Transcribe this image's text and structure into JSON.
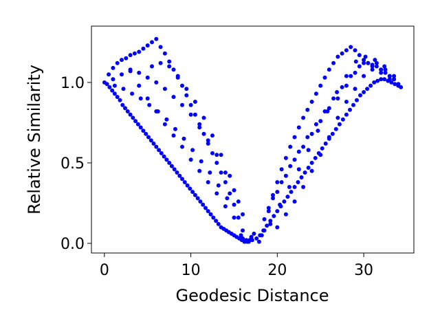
{
  "chart_data": {
    "type": "scatter",
    "title": "",
    "xlabel": "Geodesic Distance",
    "ylabel": "Relative Similarity",
    "xlim": [
      -1.5,
      35.8
    ],
    "ylim": [
      -0.06,
      1.35
    ],
    "x_ticks": [
      0,
      10,
      20,
      30
    ],
    "x_tick_labels": [
      "0",
      "10",
      "20",
      "30"
    ],
    "y_ticks": [
      0.0,
      0.5,
      1.0
    ],
    "y_tick_labels": [
      "0.0",
      "0.5",
      "1.0"
    ],
    "grid": false,
    "legend": "none",
    "marker_color": "#0000ff",
    "series": [
      {
        "x": [
          0.0,
          0.3,
          0.6,
          0.9,
          1.2,
          1.5,
          1.8,
          2.1,
          2.4,
          2.7,
          3.0,
          3.3,
          3.6,
          3.9,
          4.2,
          4.5,
          4.8,
          5.1,
          5.4,
          5.7,
          6.0,
          6.3,
          6.6,
          6.9,
          7.2,
          7.5,
          7.8,
          8.1,
          8.4,
          8.7,
          9.0,
          9.3,
          9.6,
          9.9,
          10.2,
          10.5,
          10.8,
          11.1,
          11.4,
          11.7,
          12.0,
          12.3,
          12.6,
          12.9,
          13.2,
          13.5,
          13.8,
          14.1,
          14.4,
          14.7,
          15.0,
          15.3,
          15.6,
          15.9,
          16.2,
          16.5,
          16.8,
          17.1,
          0.5,
          1.0,
          1.5,
          2.0,
          2.5,
          3.0,
          3.5,
          4.0,
          4.5,
          5.0,
          5.5,
          6.0,
          6.5,
          7.0,
          7.5,
          8.0,
          8.5,
          9.0,
          9.5,
          10.0,
          10.5,
          11.0,
          11.5,
          12.0,
          12.5,
          13.0,
          13.5,
          14.0,
          14.5,
          15.0,
          15.5,
          16.0,
          1.0,
          2.0,
          3.0,
          4.0,
          5.0,
          6.0,
          7.0,
          8.0,
          9.0,
          10.0,
          11.0,
          12.0,
          13.0,
          14.0,
          15.0,
          16.0,
          5.5,
          6.5,
          7.5,
          8.5,
          9.5,
          10.5,
          11.5,
          12.5,
          13.5,
          14.5,
          15.5,
          1.2,
          2.2,
          3.2,
          4.2,
          5.2,
          6.2,
          7.2,
          8.2,
          9.2,
          10.2,
          11.2,
          12.2,
          13.2,
          14.2,
          3.0,
          4.0,
          5.0,
          6.0,
          7.0,
          8.0,
          9.0,
          10.0,
          11.0,
          12.0,
          13.0,
          14.0,
          15.0,
          15.8,
          16.0,
          16.4,
          16.7,
          17.0,
          17.3,
          17.6,
          17.9,
          18.2,
          18.5,
          18.0,
          18.4,
          18.8,
          19.2,
          19.6,
          20.0,
          20.4,
          20.8,
          21.2,
          21.6,
          22.0,
          22.4,
          22.8,
          23.2,
          23.6,
          24.0,
          24.4,
          24.8,
          25.2,
          25.6,
          26.0,
          26.4,
          26.8,
          27.2,
          27.6,
          28.0,
          28.4,
          28.8,
          29.2,
          29.6,
          30.0,
          30.4,
          30.8,
          31.2,
          31.6,
          32.0,
          32.4,
          32.8,
          33.2,
          33.6,
          34.0,
          34.3,
          18.5,
          19.0,
          19.5,
          20.0,
          20.5,
          21.0,
          21.5,
          22.0,
          22.5,
          23.0,
          23.5,
          24.0,
          24.5,
          25.0,
          25.5,
          26.0,
          26.5,
          27.0,
          27.5,
          28.0,
          28.5,
          29.0,
          29.5,
          30.0,
          30.5,
          31.0,
          31.5,
          32.0,
          32.5,
          33.0,
          33.5,
          34.0,
          19.0,
          20.0,
          21.0,
          22.0,
          23.0,
          24.0,
          25.0,
          26.0,
          27.0,
          28.0,
          29.0,
          30.0,
          31.0,
          32.0,
          33.0,
          34.0,
          19.5,
          20.5,
          21.5,
          22.5,
          23.5,
          24.5,
          25.5,
          26.5,
          27.5,
          28.5,
          29.5,
          30.5,
          31.5,
          32.5,
          33.5,
          20.0,
          21.0,
          22.0,
          23.0,
          24.0,
          25.0,
          26.0,
          27.0,
          28.0,
          29.0,
          30.0,
          31.0,
          32.0,
          33.0,
          19.2,
          20.3,
          21.4,
          22.5,
          23.6,
          24.7,
          25.8,
          26.9,
          28.0,
          29.1,
          30.2,
          31.3,
          32.4,
          33.5
        ],
        "y": [
          1.0,
          0.99,
          0.97,
          0.95,
          0.93,
          0.91,
          0.89,
          0.86,
          0.84,
          0.82,
          0.8,
          0.78,
          0.76,
          0.74,
          0.72,
          0.7,
          0.68,
          0.66,
          0.64,
          0.62,
          0.6,
          0.58,
          0.56,
          0.54,
          0.52,
          0.5,
          0.48,
          0.46,
          0.44,
          0.42,
          0.4,
          0.38,
          0.36,
          0.34,
          0.32,
          0.3,
          0.28,
          0.26,
          0.24,
          0.22,
          0.2,
          0.18,
          0.16,
          0.14,
          0.12,
          0.1,
          0.09,
          0.08,
          0.07,
          0.06,
          0.05,
          0.04,
          0.03,
          0.02,
          0.01,
          0.01,
          0.02,
          0.02,
          1.05,
          1.09,
          1.12,
          1.14,
          1.15,
          1.17,
          1.18,
          1.19,
          1.21,
          1.23,
          1.25,
          1.27,
          1.22,
          1.18,
          1.13,
          1.08,
          1.03,
          0.98,
          0.92,
          0.86,
          0.8,
          0.74,
          0.68,
          0.62,
          0.56,
          0.5,
          0.44,
          0.38,
          0.31,
          0.24,
          0.16,
          0.08,
          1.02,
          1.05,
          1.07,
          1.06,
          1.03,
          1.0,
          0.96,
          0.91,
          0.86,
          0.8,
          0.72,
          0.64,
          0.55,
          0.44,
          0.33,
          0.18,
          1.1,
          1.12,
          1.1,
          1.04,
          0.96,
          0.88,
          0.78,
          0.67,
          0.55,
          0.42,
          0.26,
          0.98,
          0.96,
          0.93,
          0.9,
          0.86,
          0.82,
          0.77,
          0.71,
          0.65,
          0.58,
          0.51,
          0.44,
          0.36,
          0.28,
          1.08,
          0.98,
          0.9,
          0.82,
          0.74,
          0.67,
          0.6,
          0.52,
          0.45,
          0.38,
          0.31,
          0.23,
          0.16,
          0.05,
          0.03,
          0.02,
          0.01,
          0.04,
          0.06,
          0.03,
          0.01,
          0.05,
          0.08,
          0.05,
          0.08,
          0.11,
          0.14,
          0.17,
          0.2,
          0.23,
          0.26,
          0.29,
          0.32,
          0.35,
          0.38,
          0.41,
          0.44,
          0.47,
          0.5,
          0.53,
          0.56,
          0.59,
          0.62,
          0.65,
          0.68,
          0.71,
          0.74,
          0.77,
          0.8,
          0.83,
          0.86,
          0.89,
          0.92,
          0.94,
          0.96,
          0.98,
          1.0,
          1.01,
          1.02,
          1.02,
          1.01,
          1.0,
          0.99,
          0.98,
          0.97,
          0.15,
          0.22,
          0.3,
          0.38,
          0.46,
          0.53,
          0.6,
          0.66,
          0.72,
          0.78,
          0.83,
          0.88,
          0.93,
          0.98,
          1.03,
          1.08,
          1.12,
          1.16,
          1.18,
          1.2,
          1.22,
          1.2,
          1.17,
          1.14,
          1.12,
          1.11,
          1.1,
          1.08,
          1.06,
          1.04,
          1.02,
          0.99,
          0.2,
          0.32,
          0.42,
          0.52,
          0.6,
          0.68,
          0.76,
          0.84,
          0.9,
          0.98,
          1.06,
          1.12,
          1.1,
          1.08,
          1.04,
          0.98,
          0.28,
          0.38,
          0.48,
          0.57,
          0.66,
          0.74,
          0.82,
          0.9,
          0.97,
          1.04,
          1.1,
          1.12,
          1.12,
          1.08,
          1.02,
          0.1,
          0.18,
          0.26,
          0.35,
          0.45,
          0.55,
          0.66,
          0.78,
          0.88,
          0.96,
          1.04,
          1.08,
          1.06,
          1.02,
          0.12,
          0.24,
          0.35,
          0.46,
          0.58,
          0.7,
          0.82,
          0.94,
          1.04,
          1.13,
          1.16,
          1.14,
          1.1,
          1.04
        ]
      }
    ]
  }
}
